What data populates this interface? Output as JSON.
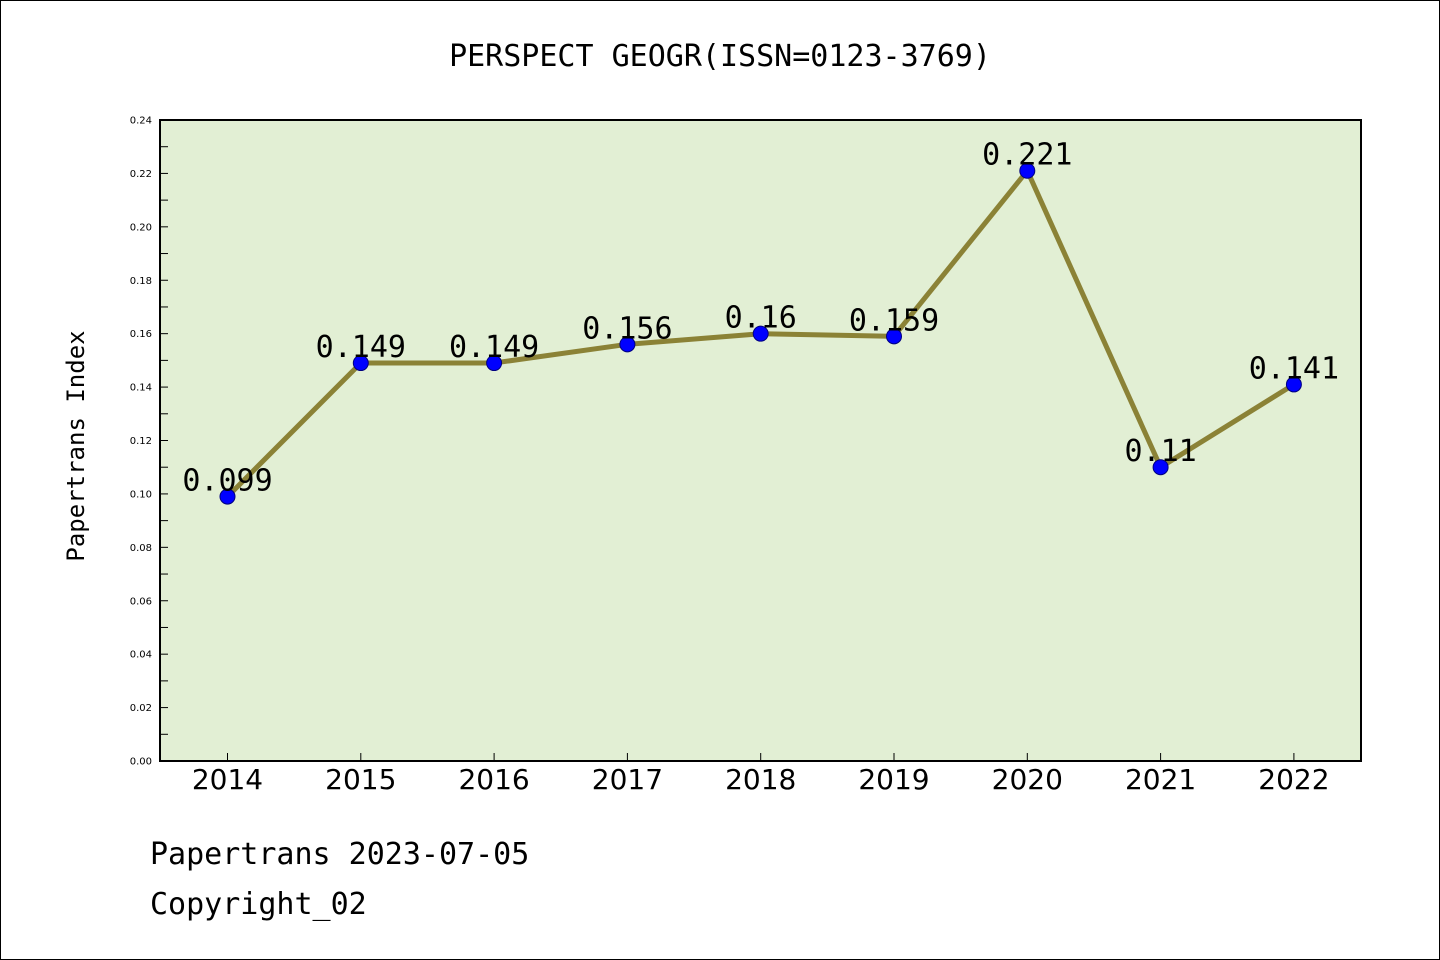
{
  "chart_data": {
    "type": "line",
    "title": "PERSPECT GEOGR(ISSN=0123-3769)",
    "xlabel": "",
    "ylabel": "Papertrans Index",
    "categories": [
      "2014",
      "2015",
      "2016",
      "2017",
      "2018",
      "2019",
      "2020",
      "2021",
      "2022"
    ],
    "values": [
      0.099,
      0.149,
      0.149,
      0.156,
      0.16,
      0.159,
      0.221,
      0.11,
      0.141
    ],
    "value_labels": [
      "0.099",
      "0.149",
      "0.149",
      "0.156",
      "0.16",
      "0.159",
      "0.221",
      "0.11",
      "0.141"
    ],
    "ylim": [
      0.0,
      0.24
    ],
    "yticks": [
      "0.00",
      "0.02",
      "0.04",
      "0.06",
      "0.08",
      "0.10",
      "0.12",
      "0.14",
      "0.16",
      "0.18",
      "0.20",
      "0.22",
      "0.24"
    ],
    "grid": false,
    "colors": {
      "plot_background": "#e2efd4",
      "line": "#8b8236",
      "marker": "#0000ff",
      "marker_edge": "#000080"
    }
  },
  "footer": {
    "line1": "Papertrans 2023-07-05",
    "line2": "Copyright_02"
  }
}
